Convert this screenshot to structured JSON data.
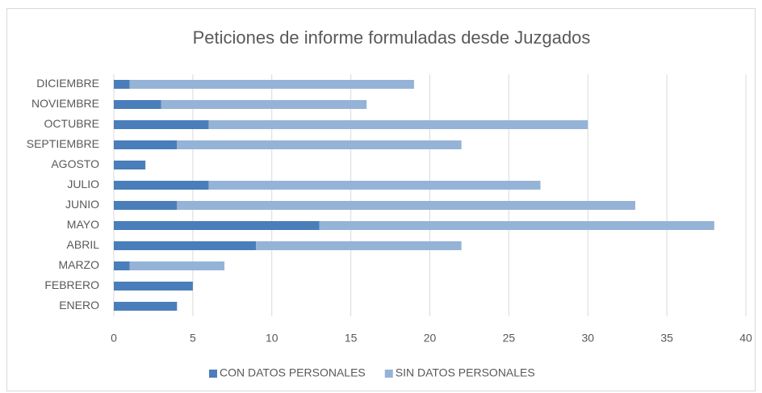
{
  "chart_data": {
    "type": "stacked-barh",
    "title": "Peticiones de informe formuladas desde Juzgados",
    "categories": [
      "ENERO",
      "FEBRERO",
      "MARZO",
      "ABRIL",
      "MAYO",
      "JUNIO",
      "JULIO",
      "AGOSTO",
      "SEPTIEMBRE",
      "OCTUBRE",
      "NOVIEMBRE",
      "DICIEMBRE"
    ],
    "series": [
      {
        "name": "CON DATOS PERSONALES",
        "color": "#4a7ebb",
        "values": [
          4,
          5,
          1,
          9,
          13,
          4,
          6,
          2,
          4,
          6,
          3,
          1
        ]
      },
      {
        "name": "SIN DATOS PERSONALES",
        "color": "#95b3d7",
        "values": [
          0,
          0,
          6,
          13,
          25,
          29,
          21,
          0,
          18,
          24,
          13,
          18
        ]
      }
    ],
    "xlim": [
      0,
      40
    ],
    "xticks": [
      0,
      5,
      10,
      15,
      20,
      25,
      30,
      35,
      40
    ],
    "grid": true,
    "legend": "bottom"
  }
}
